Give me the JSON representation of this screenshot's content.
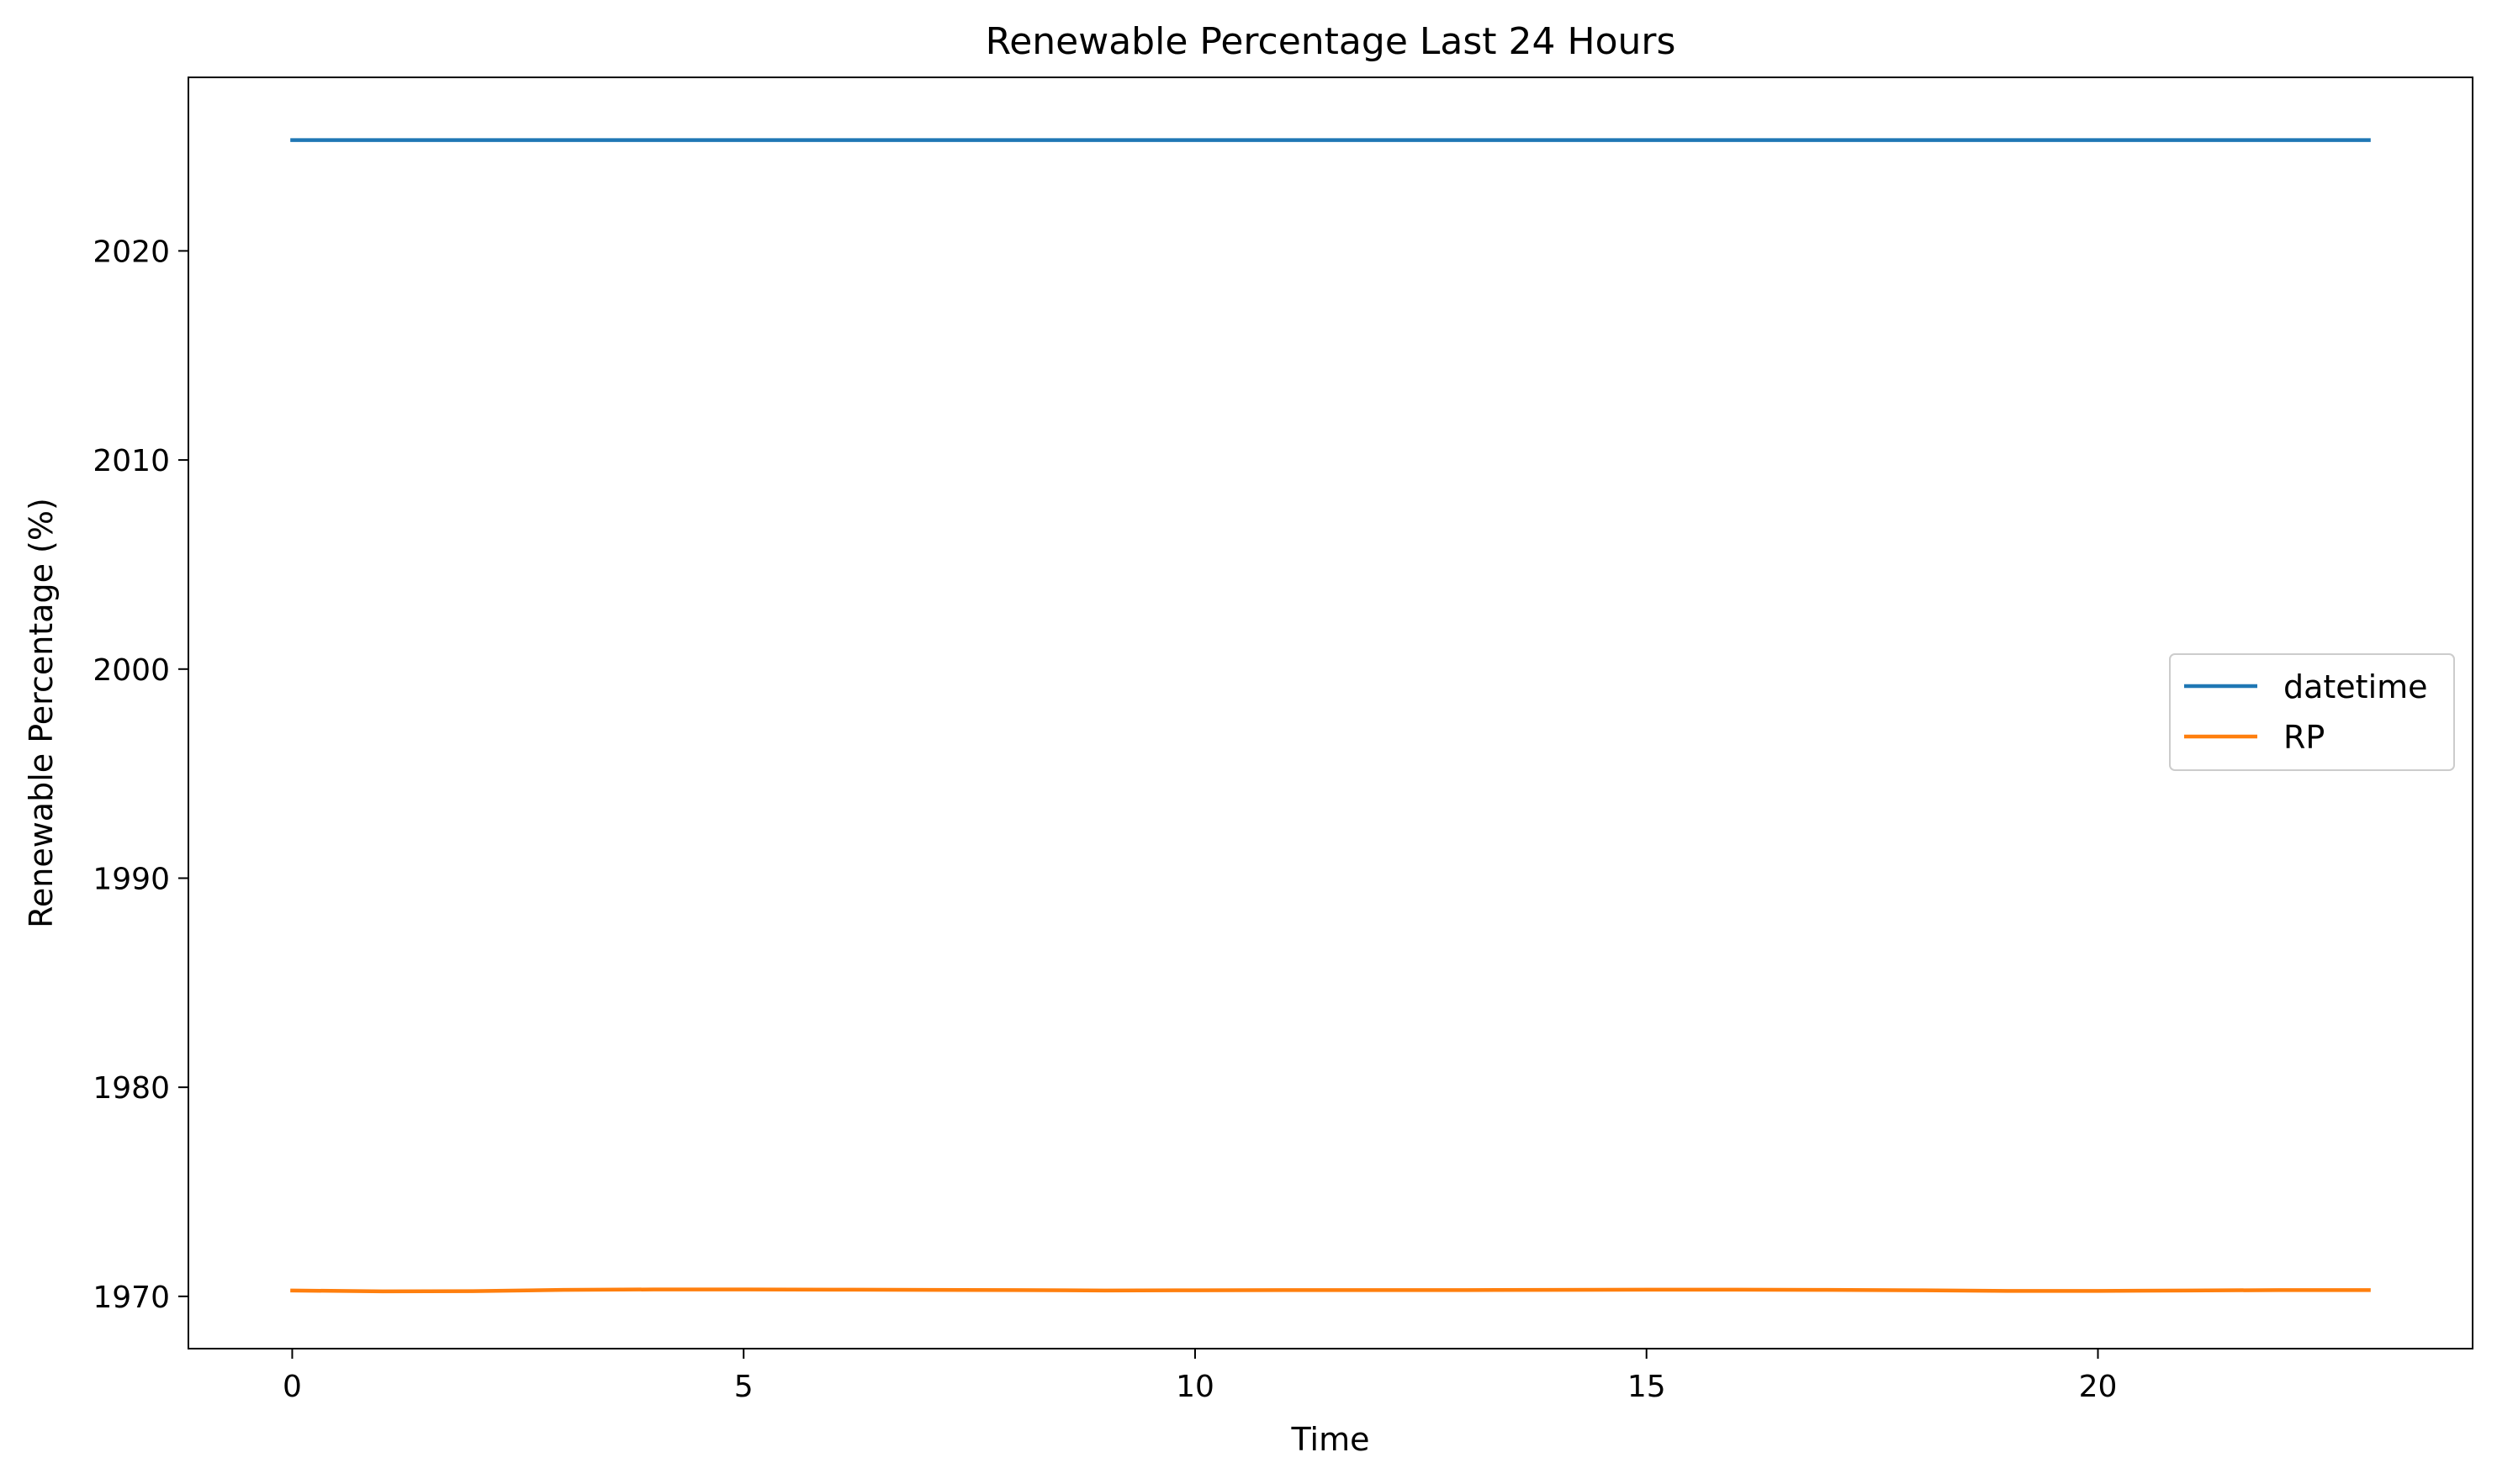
{
  "chart_data": {
    "type": "line",
    "title": "Renewable Percentage Last 24 Hours",
    "xlabel": "Time",
    "ylabel": "Renewable Percentage (%)",
    "x": [
      0,
      1,
      2,
      3,
      4,
      5,
      6,
      7,
      8,
      9,
      10,
      11,
      12,
      13,
      14,
      15,
      16,
      17,
      18,
      19,
      20,
      21,
      22,
      23
    ],
    "xlim": [
      -1.15,
      24.15
    ],
    "ylim": [
      1967.5,
      2028.3
    ],
    "xticks": [
      0,
      5,
      10,
      15,
      20
    ],
    "yticks": [
      1970,
      1980,
      1990,
      2000,
      2010,
      2020
    ],
    "grid": false,
    "legend": "center-right",
    "series": [
      {
        "name": "datetime",
        "color": "#1f77b4",
        "values": [
          2025.3,
          2025.3,
          2025.3,
          2025.3,
          2025.3,
          2025.3,
          2025.3,
          2025.3,
          2025.3,
          2025.3,
          2025.3,
          2025.3,
          2025.3,
          2025.3,
          2025.3,
          2025.3,
          2025.3,
          2025.3,
          2025.3,
          2025.3,
          2025.3,
          2025.3,
          2025.3,
          2025.3
        ]
      },
      {
        "name": "RP",
        "color": "#ff7f0e",
        "values": [
          1970.28,
          1970.24,
          1970.25,
          1970.31,
          1970.33,
          1970.33,
          1970.32,
          1970.31,
          1970.3,
          1970.28,
          1970.29,
          1970.3,
          1970.3,
          1970.3,
          1970.31,
          1970.32,
          1970.32,
          1970.31,
          1970.29,
          1970.26,
          1970.26,
          1970.28,
          1970.3,
          1970.3
        ]
      }
    ]
  }
}
